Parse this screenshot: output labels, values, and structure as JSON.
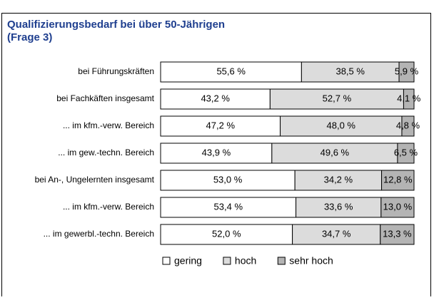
{
  "chart_data": {
    "type": "stacked-bar",
    "orientation": "horizontal",
    "title": "Qualifizierungsbedarf bei über 50-Jährigen",
    "subtitle": "(Frage 3)",
    "categories": [
      "bei Führungskräften",
      "bei Fachkäften insgesamt",
      "... im kfm.-verw. Bereich",
      "... im gew.-techn. Bereich",
      "bei An-, Ungelernten insgesamt",
      "... im kfm.-verw. Bereich",
      "... im gewerbl.-techn. Bereich"
    ],
    "xlim": [
      0,
      100
    ],
    "series": [
      {
        "name": "gering",
        "color": "#ffffff",
        "values": [
          55.6,
          43.2,
          47.2,
          43.9,
          53.0,
          53.4,
          52.0
        ],
        "value_labels": [
          "55,6 %",
          "43,2 %",
          "47,2 %",
          "43,9 %",
          "53,0 %",
          "53,4 %",
          "52,0 %"
        ]
      },
      {
        "name": "hoch",
        "color": "#dcdcdc",
        "values": [
          38.5,
          52.7,
          48.0,
          49.6,
          34.2,
          33.6,
          34.7
        ],
        "value_labels": [
          "38,5 %",
          "52,7 %",
          "48,0 %",
          "49,6 %",
          "34,2 %",
          "33,6 %",
          "34,7 %"
        ]
      },
      {
        "name": "sehr hoch",
        "color": "#b4b4b4",
        "values": [
          5.9,
          4.1,
          4.8,
          6.5,
          12.8,
          13.0,
          13.3
        ],
        "value_labels": [
          "5,9 %",
          "4,1 %",
          "4,8 %",
          "6,5 %",
          "12,8 %",
          "13,0 %",
          "13,3 %"
        ]
      }
    ],
    "legend": "bottom"
  }
}
